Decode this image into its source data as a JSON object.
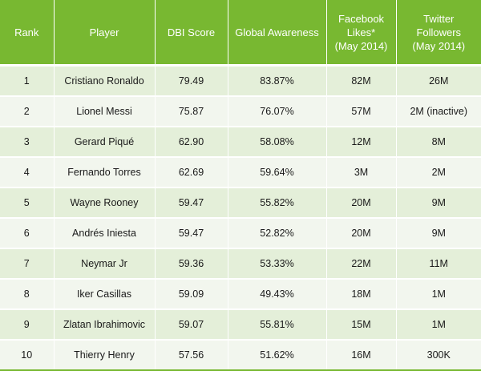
{
  "table": {
    "headers": {
      "rank": "Rank",
      "player": "Player",
      "dbi": "DBI Score",
      "awareness": "Global Awareness",
      "facebook": [
        "Facebook",
        "Likes*",
        "(May 2014)"
      ],
      "twitter": [
        "Twitter",
        "Followers",
        "(May 2014)"
      ]
    },
    "rows": [
      {
        "rank": "1",
        "player": "Cristiano Ronaldo",
        "dbi": "79.49",
        "awareness": "83.87%",
        "facebook": "82M",
        "twitter": "26M"
      },
      {
        "rank": "2",
        "player": "Lionel Messi",
        "dbi": "75.87",
        "awareness": "76.07%",
        "facebook": "57M",
        "twitter": "2M (inactive)"
      },
      {
        "rank": "3",
        "player": "Gerard Piqué",
        "dbi": "62.90",
        "awareness": "58.08%",
        "facebook": "12M",
        "twitter": "8M"
      },
      {
        "rank": "4",
        "player": "Fernando Torres",
        "dbi": "62.69",
        "awareness": "59.64%",
        "facebook": "3M",
        "twitter": "2M"
      },
      {
        "rank": "5",
        "player": "Wayne Rooney",
        "dbi": "59.47",
        "awareness": "55.82%",
        "facebook": "20M",
        "twitter": "9M"
      },
      {
        "rank": "6",
        "player": "Andrés Iniesta",
        "dbi": "59.47",
        "awareness": "52.82%",
        "facebook": "20M",
        "twitter": "9M"
      },
      {
        "rank": "7",
        "player": "Neymar Jr",
        "dbi": "59.36",
        "awareness": "53.33%",
        "facebook": "22M",
        "twitter": "11M"
      },
      {
        "rank": "8",
        "player": "Iker Casillas",
        "dbi": "59.09",
        "awareness": "49.43%",
        "facebook": "18M",
        "twitter": "1M"
      },
      {
        "rank": "9",
        "player": "Zlatan Ibrahimovic",
        "dbi": "59.07",
        "awareness": "55.81%",
        "facebook": "15M",
        "twitter": "1M"
      },
      {
        "rank": "10",
        "player": "Thierry Henry",
        "dbi": "57.56",
        "awareness": "51.62%",
        "facebook": "16M",
        "twitter": "300K"
      }
    ]
  },
  "colors": {
    "header_bg": "#78b831",
    "row_odd": "#e4efd9",
    "row_even": "#f2f6ee"
  }
}
